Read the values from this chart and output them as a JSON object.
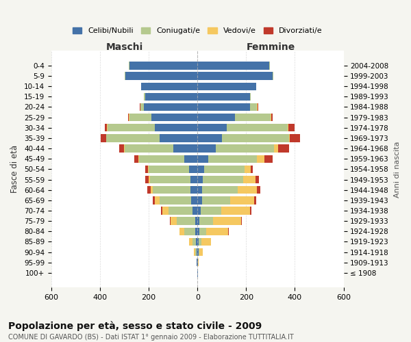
{
  "age_groups": [
    "100+",
    "95-99",
    "90-94",
    "85-89",
    "80-84",
    "75-79",
    "70-74",
    "65-69",
    "60-64",
    "55-59",
    "50-54",
    "45-49",
    "40-44",
    "35-39",
    "30-34",
    "25-29",
    "20-24",
    "15-19",
    "10-14",
    "5-9",
    "0-4"
  ],
  "birth_years": [
    "≤ 1908",
    "1909-1913",
    "1914-1918",
    "1919-1923",
    "1924-1928",
    "1929-1933",
    "1934-1938",
    "1939-1943",
    "1944-1948",
    "1949-1953",
    "1954-1958",
    "1959-1963",
    "1964-1968",
    "1969-1973",
    "1974-1978",
    "1979-1983",
    "1984-1988",
    "1989-1993",
    "1994-1998",
    "1999-2003",
    "2004-2008"
  ],
  "colors": {
    "celibi": "#4472a8",
    "coniugati": "#b5c98e",
    "vedovi": "#f5c860",
    "divorziati": "#c0392b"
  },
  "males": {
    "celibi": [
      2,
      3,
      4,
      5,
      8,
      10,
      20,
      25,
      28,
      30,
      35,
      55,
      100,
      155,
      175,
      190,
      220,
      215,
      230,
      295,
      280
    ],
    "coniugati": [
      0,
      0,
      5,
      15,
      45,
      75,
      100,
      130,
      155,
      165,
      165,
      185,
      200,
      220,
      195,
      90,
      15,
      5,
      2,
      3,
      2
    ],
    "vedovi": [
      0,
      1,
      5,
      15,
      20,
      25,
      25,
      20,
      10,
      5,
      3,
      2,
      2,
      1,
      1,
      1,
      0,
      0,
      0,
      0,
      0
    ],
    "divorziati": [
      0,
      0,
      0,
      0,
      2,
      3,
      5,
      8,
      12,
      15,
      12,
      18,
      20,
      22,
      10,
      3,
      2,
      0,
      0,
      0,
      0
    ]
  },
  "females": {
    "nubili": [
      2,
      3,
      5,
      5,
      7,
      8,
      12,
      18,
      20,
      22,
      28,
      45,
      75,
      100,
      120,
      155,
      215,
      215,
      240,
      310,
      295
    ],
    "coniugate": [
      0,
      0,
      2,
      10,
      30,
      55,
      85,
      115,
      145,
      165,
      165,
      200,
      240,
      275,
      250,
      145,
      30,
      5,
      2,
      2,
      2
    ],
    "vedove": [
      0,
      2,
      15,
      40,
      90,
      115,
      120,
      100,
      80,
      50,
      25,
      30,
      15,
      5,
      3,
      3,
      2,
      0,
      0,
      0,
      0
    ],
    "divorziate": [
      0,
      0,
      0,
      0,
      2,
      3,
      5,
      8,
      12,
      15,
      8,
      35,
      45,
      40,
      25,
      5,
      2,
      0,
      0,
      0,
      0
    ]
  },
  "xlim": 600,
  "title": "Popolazione per età, sesso e stato civile - 2009",
  "subtitle": "COMUNE DI GAVARDO (BS) - Dati ISTAT 1° gennaio 2009 - Elaborazione TUTTITALIA.IT",
  "ylabel_left": "Fasce di età",
  "ylabel_right": "Anni di nascita",
  "xlabel_maschi": "Maschi",
  "xlabel_femmine": "Femmine",
  "background": "#f5f5f0",
  "plot_bg": "#ffffff"
}
